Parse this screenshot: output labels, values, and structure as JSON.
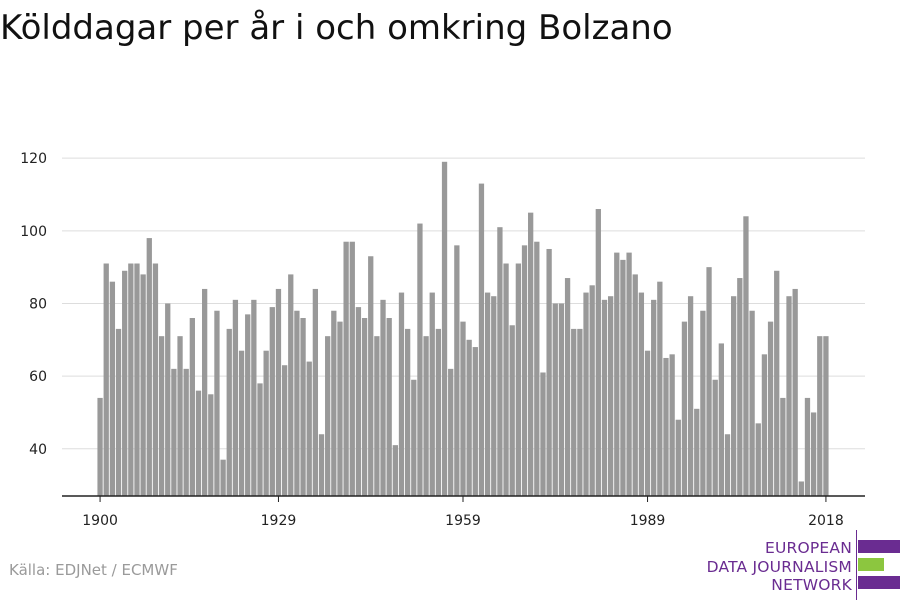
{
  "title": "Kölddagar per år i och omkring Bolzano",
  "source": "Källa: EDJNet / ECMWF",
  "logo": {
    "lines": [
      "EUROPEAN",
      "DATA JOURNALISM",
      "NETWORK"
    ],
    "colors": {
      "purple": "#6a2c91",
      "green": "#8cc63f"
    }
  },
  "chart_data": {
    "type": "bar",
    "title": "Kölddagar per år i och omkring Bolzano",
    "xlabel": "",
    "ylabel": "",
    "bar_color": "#999999",
    "x_start": 1900,
    "x_end": 2018,
    "x_ticks": [
      1900,
      1929,
      1959,
      1989,
      2018
    ],
    "y_ticks": [
      40,
      60,
      80,
      100,
      120
    ],
    "ylim": [
      27,
      125
    ],
    "grid": "horizontal",
    "values": [
      54,
      91,
      86,
      73,
      89,
      91,
      91,
      88,
      98,
      91,
      71,
      80,
      62,
      71,
      62,
      76,
      56,
      84,
      55,
      78,
      37,
      73,
      81,
      67,
      77,
      81,
      58,
      67,
      79,
      84,
      63,
      88,
      78,
      76,
      64,
      84,
      44,
      71,
      78,
      75,
      97,
      97,
      79,
      76,
      93,
      71,
      81,
      76,
      41,
      83,
      73,
      59,
      102,
      71,
      83,
      73,
      119,
      62,
      96,
      75,
      70,
      68,
      113,
      83,
      82,
      101,
      91,
      74,
      91,
      96,
      105,
      97,
      61,
      95,
      80,
      80,
      87,
      73,
      73,
      83,
      85,
      106,
      81,
      82,
      94,
      92,
      94,
      88,
      83,
      67,
      81,
      86,
      65,
      66,
      48,
      75,
      82,
      51,
      78,
      90,
      59,
      69,
      44,
      82,
      87,
      104,
      78,
      47,
      66,
      75,
      89,
      54,
      82,
      84,
      31,
      54,
      50,
      71,
      71
    ]
  }
}
